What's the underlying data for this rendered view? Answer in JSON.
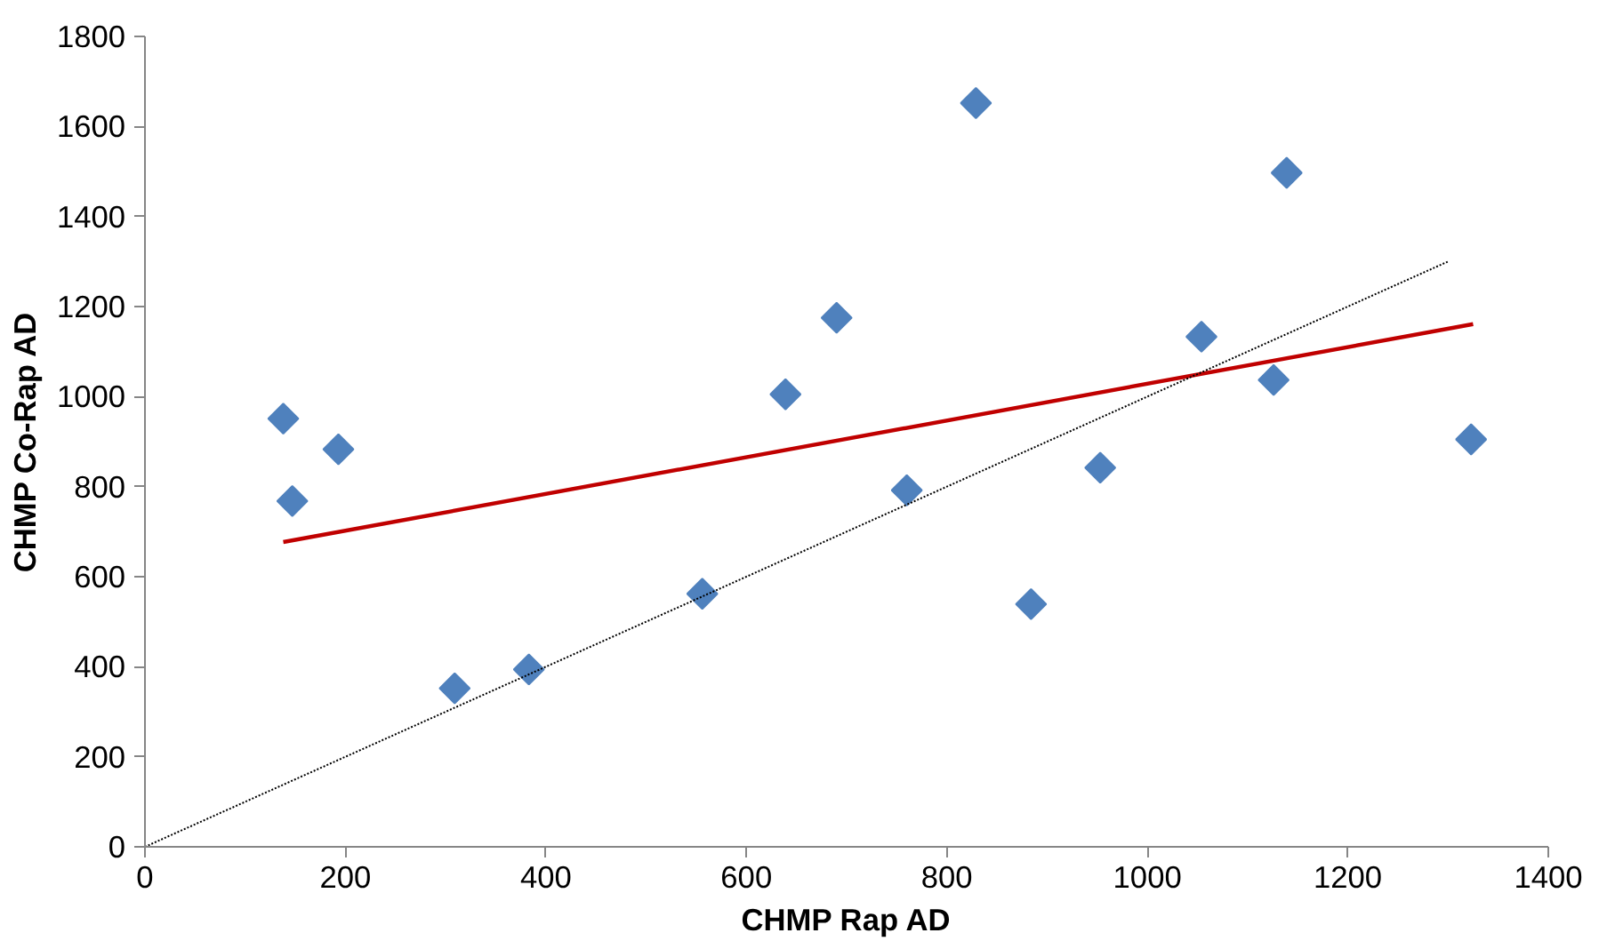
{
  "chart_data": {
    "type": "scatter",
    "xlabel": "CHMP Rap AD",
    "ylabel": "CHMP Co-Rap AD",
    "xlim": [
      0,
      1400
    ],
    "ylim": [
      0,
      1800
    ],
    "xticks": [
      0,
      200,
      400,
      600,
      800,
      1000,
      1200,
      1400
    ],
    "yticks": [
      0,
      200,
      400,
      600,
      800,
      1000,
      1200,
      1400,
      1600,
      1800
    ],
    "grid": false,
    "marker": "diamond",
    "series": [
      {
        "color": "#4f81bd",
        "x": [
          138,
          147,
          193,
          309,
          383,
          556,
          639,
          690,
          829,
          1139,
          1054,
          1126,
          1323,
          760,
          953,
          884
        ],
        "values": [
          951,
          768,
          883,
          352,
          394,
          562,
          1005,
          1175,
          1652,
          1497,
          1133,
          1037,
          905,
          792,
          842,
          539
        ]
      },
      {
        "type": "line",
        "color": "#c00000",
        "line_style": "solid",
        "marker": "none",
        "x": [
          138,
          1325
        ],
        "values": [
          677,
          1161
        ]
      },
      {
        "type": "line",
        "color": "#000000",
        "line_style": "dotted",
        "marker": "none",
        "x": [
          0,
          1300
        ],
        "values": [
          0,
          1300
        ]
      }
    ]
  }
}
